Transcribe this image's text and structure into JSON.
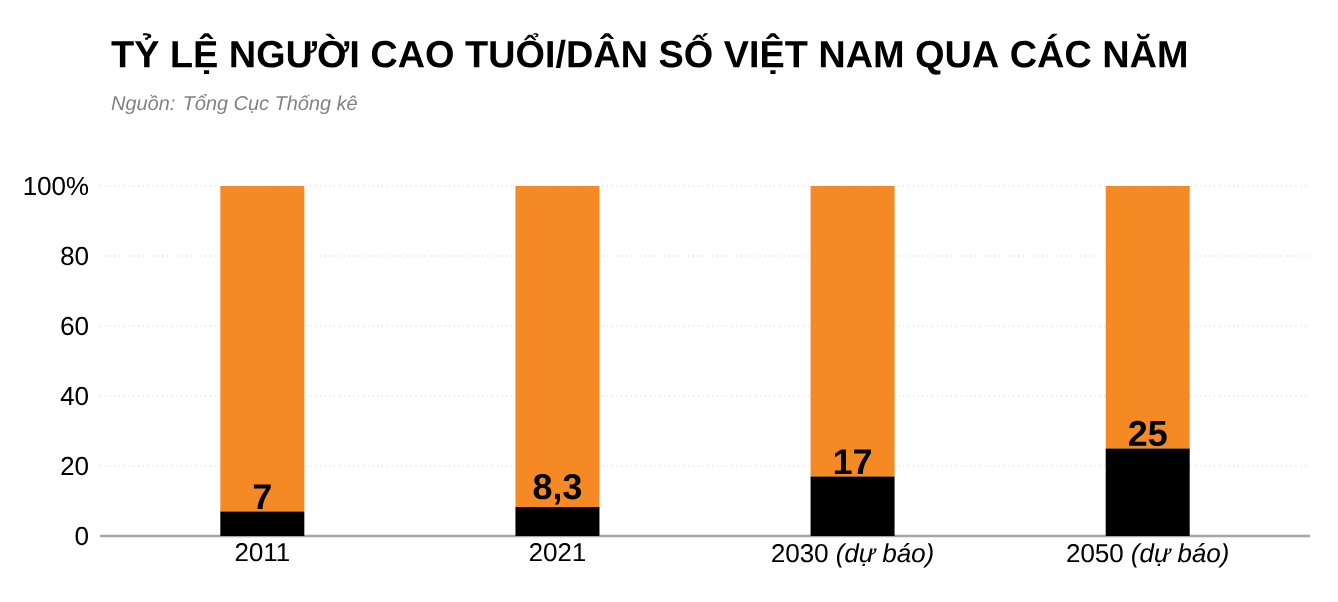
{
  "chart_data": {
    "type": "bar",
    "stacked": true,
    "title": "TỶ LỆ NGƯỜI CAO TUỔI/DÂN SỐ VIỆT NAM QUA CÁC NĂM",
    "annotations": [
      "Nguồn: Tổng Cục Thống kê"
    ],
    "categories": [
      "2011",
      "2021",
      "2030 *(dự báo)*",
      "2050 *(dự báo)*"
    ],
    "series": [
      {
        "color": "#000000",
        "values": [
          7,
          8.3,
          17,
          25
        ],
        "value_labels": [
          "7",
          "8,3",
          "17",
          "25"
        ]
      },
      {
        "color": "#f58a24",
        "values": [
          93,
          91.7,
          83,
          75
        ]
      }
    ],
    "ylim": [
      0,
      100
    ],
    "yticks": [
      0,
      20,
      40,
      60,
      80,
      {
        "value": 100,
        "label": "100%"
      }
    ],
    "grid": "y"
  }
}
